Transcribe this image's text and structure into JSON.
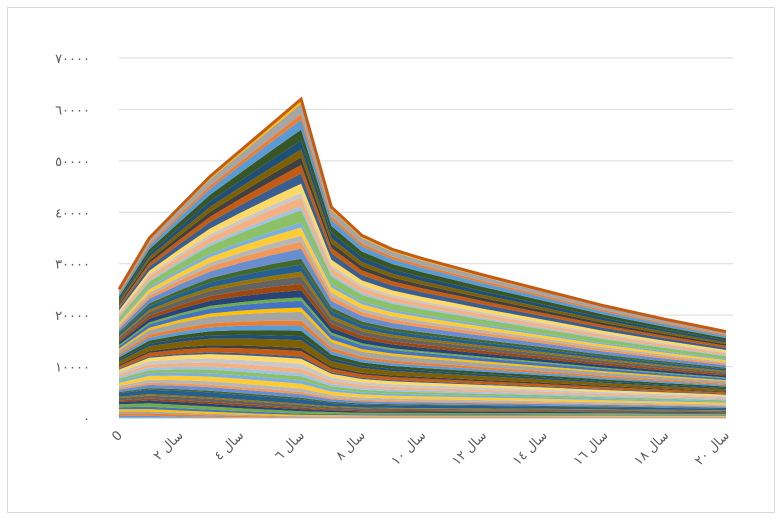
{
  "chart_data": {
    "type": "area",
    "stacked": true,
    "title": "",
    "xlabel": "",
    "ylabel": "",
    "ylim": [
      0,
      70000
    ],
    "grid": true,
    "legend": "none",
    "y_ticks": [
      "٠",
      "١٠٠٠٠",
      "٢٠٠٠٠",
      "٣٠٠٠٠",
      "٤٠٠٠٠",
      "٥٠٠٠٠",
      "٦٠٠٠٠",
      "٧٠٠٠٠"
    ],
    "y_tick_values": [
      0,
      10000,
      20000,
      30000,
      40000,
      50000,
      60000,
      70000
    ],
    "x_categories": [
      "0",
      "",
      "سال ٢",
      "",
      "سال ٤",
      "",
      "سال ٦",
      "",
      "سال ٨",
      "",
      "سال ١٠",
      "",
      "سال ١٢",
      "",
      "سال ١٤",
      "",
      "سال ١٦",
      "",
      "سال ١٨",
      "",
      "سال ٢٠"
    ],
    "total": [
      25000,
      35000,
      41000,
      47000,
      52000,
      57000,
      62000,
      41000,
      35500,
      32800,
      31000,
      29400,
      27800,
      26300,
      24800,
      23300,
      21800,
      20500,
      19200,
      18000,
      16800
    ],
    "layers": 60,
    "palette": [
      "#5b9bd5",
      "#ed7d31",
      "#a5a5a5",
      "#ffc000",
      "#4472c4",
      "#70ad47",
      "#264478",
      "#9e480e",
      "#636363",
      "#997300",
      "#255e91",
      "#43682b",
      "#698ed0",
      "#f1975a",
      "#b7b7b7",
      "#ffcd33",
      "#7cafdd",
      "#8cc168",
      "#9dc3e6",
      "#f4b183",
      "#c9c9c9",
      "#ffd966",
      "#3a5f8f",
      "#c55a11",
      "#404040",
      "#7f6000",
      "#1f4e79",
      "#375623"
    ]
  }
}
